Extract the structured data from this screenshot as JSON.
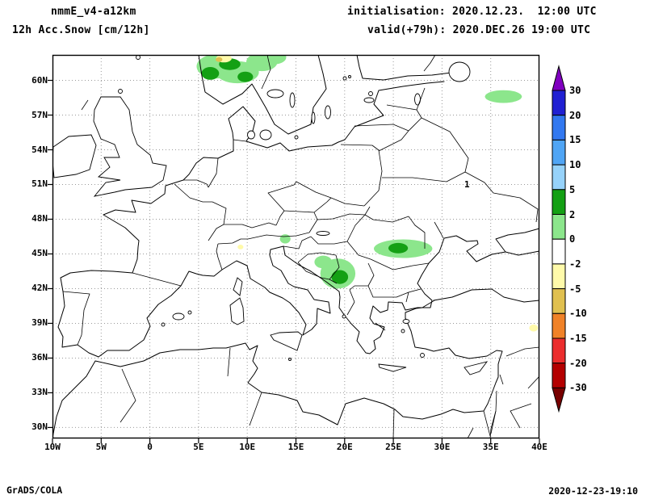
{
  "header": {
    "model": "nmmE_v4-a12km",
    "variable": "12h Acc.Snow [cm/12h]",
    "init": "initialisation: 2020.12.23.  12:00 UTC",
    "valid": "valid(+79h): 2020.DEC.26 19:00 UTC"
  },
  "footer": {
    "credit": "GrADS/COLA",
    "timestamp": "2020-12-23-19:10"
  },
  "map": {
    "annotation": "1",
    "lat_ticks": [
      {
        "value": 60,
        "label": "60N"
      },
      {
        "value": 57,
        "label": "57N"
      },
      {
        "value": 54,
        "label": "54N"
      },
      {
        "value": 51,
        "label": "51N"
      },
      {
        "value": 48,
        "label": "48N"
      },
      {
        "value": 45,
        "label": "45N"
      },
      {
        "value": 42,
        "label": "42N"
      },
      {
        "value": 39,
        "label": "39N"
      },
      {
        "value": 36,
        "label": "36N"
      },
      {
        "value": 33,
        "label": "33N"
      },
      {
        "value": 30,
        "label": "30N"
      }
    ],
    "lon_ticks": [
      {
        "value": -10,
        "label": "10W"
      },
      {
        "value": -5,
        "label": "5W"
      },
      {
        "value": 0,
        "label": "0"
      },
      {
        "value": 5,
        "label": "5E"
      },
      {
        "value": 10,
        "label": "10E"
      },
      {
        "value": 15,
        "label": "15E"
      },
      {
        "value": 20,
        "label": "20E"
      },
      {
        "value": 25,
        "label": "25E"
      },
      {
        "value": 30,
        "label": "30E"
      },
      {
        "value": 35,
        "label": "35E"
      },
      {
        "value": 40,
        "label": "40E"
      }
    ]
  },
  "colorbar": {
    "labels": [
      "30",
      "20",
      "15",
      "10",
      "5",
      "2",
      "0",
      "-2",
      "-5",
      "-10",
      "-15",
      "-20",
      "-30"
    ],
    "colors": [
      "#8000c0",
      "#2020d2",
      "#3278f0",
      "#50a5f5",
      "#96d2fa",
      "#14a014",
      "#8ce68c",
      "#ffffff",
      "#fffaaa",
      "#e0c050",
      "#f08228",
      "#eb2d2d",
      "#b40000",
      "#780000"
    ]
  },
  "chart_data": {
    "type": "heatmap",
    "title": "12h Acc.Snow [cm/12h]",
    "units": "cm/12h",
    "model": "nmmE_v4-a12km",
    "initialization": "2020.12.23. 12:00 UTC",
    "valid_time": "2020.DEC.26 19:00 UTC (+79h)",
    "lon_range": [
      -10,
      40
    ],
    "lat_range": [
      29.1,
      62.2
    ],
    "grid": "dotted 5deg lon x 3deg lat",
    "legend_position": "right vertical colorbar",
    "levels": [
      30,
      20,
      15,
      10,
      5,
      2,
      0,
      -2,
      -5,
      -10,
      -15,
      -20,
      -30
    ],
    "palette": [
      "#8000c0",
      "#2020d2",
      "#3278f0",
      "#50a5f5",
      "#96d2fa",
      "#14a014",
      "#8ce68c",
      "#ffffff",
      "#fffaaa",
      "#e0c050",
      "#f08228",
      "#eb2d2d",
      "#b40000",
      "#780000"
    ],
    "band_colors": {
      "0-2": "#8ce68c",
      "2-5": "#14a014",
      "-2--5": "#fffaaa",
      "-5--10": "#e0c050"
    },
    "snow_regions": [
      {
        "name": "southern-norway-west",
        "lon": 6.8,
        "lat": 61.2,
        "rx_deg": 2.0,
        "ry_deg": 1.05,
        "band": "0-2",
        "approx_value_cm": 1
      },
      {
        "name": "southern-norway-east",
        "lon": 9.0,
        "lat": 60.7,
        "rx_deg": 2.2,
        "ry_deg": 0.95,
        "band": "0-2",
        "approx_value_cm": 1
      },
      {
        "name": "norway-sweden-border",
        "lon": 11.5,
        "lat": 61.6,
        "rx_deg": 1.6,
        "ry_deg": 0.8,
        "band": "0-2",
        "approx_value_cm": 1
      },
      {
        "name": "mid-sweden-top",
        "lon": 12.8,
        "lat": 62.0,
        "rx_deg": 1.2,
        "ry_deg": 0.6,
        "band": "0-2",
        "approx_value_cm": 1
      },
      {
        "name": "norway-core-1",
        "lon": 6.2,
        "lat": 60.6,
        "rx_deg": 0.9,
        "ry_deg": 0.55,
        "band": "2-5",
        "approx_value_cm": 3
      },
      {
        "name": "norway-core-2",
        "lon": 8.2,
        "lat": 61.4,
        "rx_deg": 1.1,
        "ry_deg": 0.5,
        "band": "2-5",
        "approx_value_cm": 3
      },
      {
        "name": "norway-core-3",
        "lon": 9.8,
        "lat": 60.3,
        "rx_deg": 0.8,
        "ry_deg": 0.45,
        "band": "2-5",
        "approx_value_cm": 3
      },
      {
        "name": "norway-top-spot-yellow",
        "lon": 7.6,
        "lat": 61.9,
        "rx_deg": 0.8,
        "ry_deg": 0.35,
        "band": "-2--5",
        "approx_value_cm": -3
      },
      {
        "name": "norway-top-spot-gold",
        "lon": 7.1,
        "lat": 61.8,
        "rx_deg": 0.35,
        "ry_deg": 0.2,
        "band": "-5--10",
        "approx_value_cm": -6
      },
      {
        "name": "nw-russia",
        "lon": 36.3,
        "lat": 58.6,
        "rx_deg": 1.9,
        "ry_deg": 0.55,
        "band": "0-2",
        "approx_value_cm": 1
      },
      {
        "name": "dinarides-balkans",
        "lon": 19.3,
        "lat": 43.3,
        "rx_deg": 1.8,
        "ry_deg": 1.3,
        "band": "0-2",
        "approx_value_cm": 1
      },
      {
        "name": "dinarides-core",
        "lon": 19.5,
        "lat": 43.0,
        "rx_deg": 0.85,
        "ry_deg": 0.6,
        "band": "2-5",
        "approx_value_cm": 3
      },
      {
        "name": "bosnia-nw-arm",
        "lon": 17.8,
        "lat": 44.3,
        "rx_deg": 0.9,
        "ry_deg": 0.55,
        "band": "0-2",
        "approx_value_cm": 1
      },
      {
        "name": "carpathians-romania",
        "lon": 26.0,
        "lat": 45.45,
        "rx_deg": 3.0,
        "ry_deg": 0.8,
        "band": "0-2",
        "approx_value_cm": 1
      },
      {
        "name": "carpathians-core",
        "lon": 25.5,
        "lat": 45.5,
        "rx_deg": 1.0,
        "ry_deg": 0.45,
        "band": "2-5",
        "approx_value_cm": 3
      },
      {
        "name": "eastern-alps-spot",
        "lon": 13.9,
        "lat": 46.3,
        "rx_deg": 0.55,
        "ry_deg": 0.4,
        "band": "0-2",
        "approx_value_cm": 1
      },
      {
        "name": "po-valley-spot",
        "lon": 9.3,
        "lat": 45.6,
        "rx_deg": 0.3,
        "ry_deg": 0.2,
        "band": "-2--5",
        "approx_value_cm": -3
      },
      {
        "name": "east-anatolia-spot",
        "lon": 39.4,
        "lat": 38.6,
        "rx_deg": 0.45,
        "ry_deg": 0.3,
        "band": "-2--5",
        "approx_value_cm": -3
      }
    ]
  }
}
